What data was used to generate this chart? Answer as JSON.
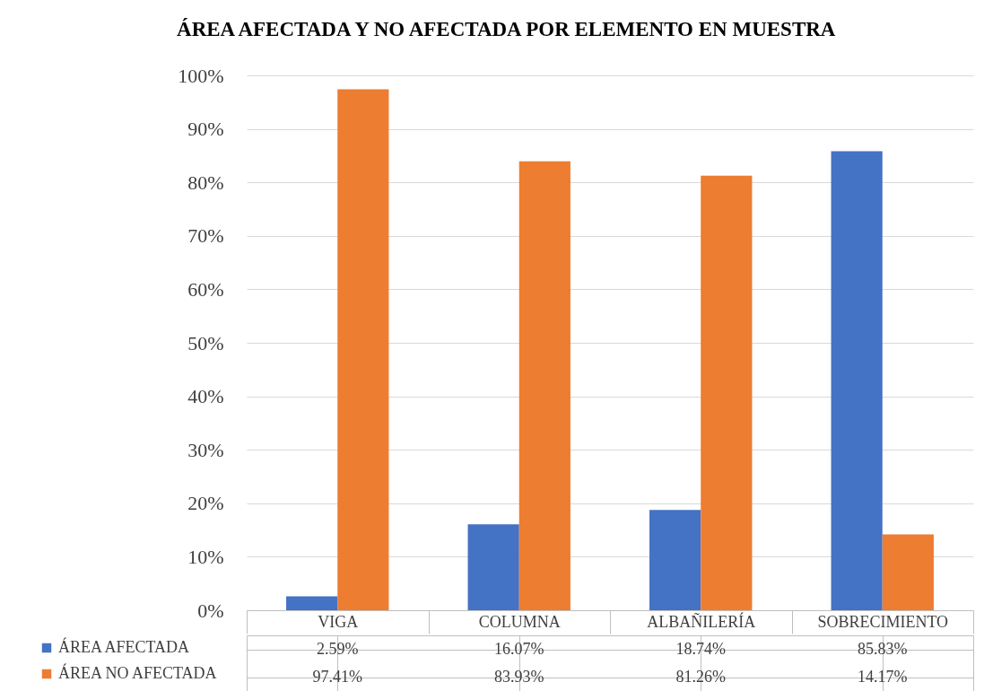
{
  "chart_data": {
    "type": "bar",
    "title": "ÁREA AFECTADA Y NO AFECTADA POR ELEMENTO EN MUESTRA",
    "categories": [
      "VIGA",
      "COLUMNA",
      "ALBAÑILERÍA",
      "SOBRECIMIENTO"
    ],
    "series": [
      {
        "name": "ÁREA AFECTADA",
        "color": "#4472c4",
        "values": [
          2.59,
          16.07,
          18.74,
          85.83
        ],
        "value_labels": [
          "2.59%",
          "16.07%",
          "18.74%",
          "85.83%"
        ]
      },
      {
        "name": "ÁREA NO AFECTADA",
        "color": "#ed7d31",
        "values": [
          97.41,
          83.93,
          81.26,
          14.17
        ],
        "value_labels": [
          "97.41%",
          "83.93%",
          "81.26%",
          "14.17%"
        ]
      }
    ],
    "ylim": [
      0,
      100
    ],
    "yticks": [
      {
        "value": 0,
        "label": "0%"
      },
      {
        "value": 10,
        "label": "10%"
      },
      {
        "value": 20,
        "label": "20%"
      },
      {
        "value": 30,
        "label": "30%"
      },
      {
        "value": 40,
        "label": "40%"
      },
      {
        "value": 50,
        "label": "50%"
      },
      {
        "value": 60,
        "label": "60%"
      },
      {
        "value": 70,
        "label": "70%"
      },
      {
        "value": 80,
        "label": "80%"
      },
      {
        "value": 90,
        "label": "90%"
      },
      {
        "value": 100,
        "label": "100%"
      }
    ],
    "grid": "y",
    "legend": "bottom"
  }
}
